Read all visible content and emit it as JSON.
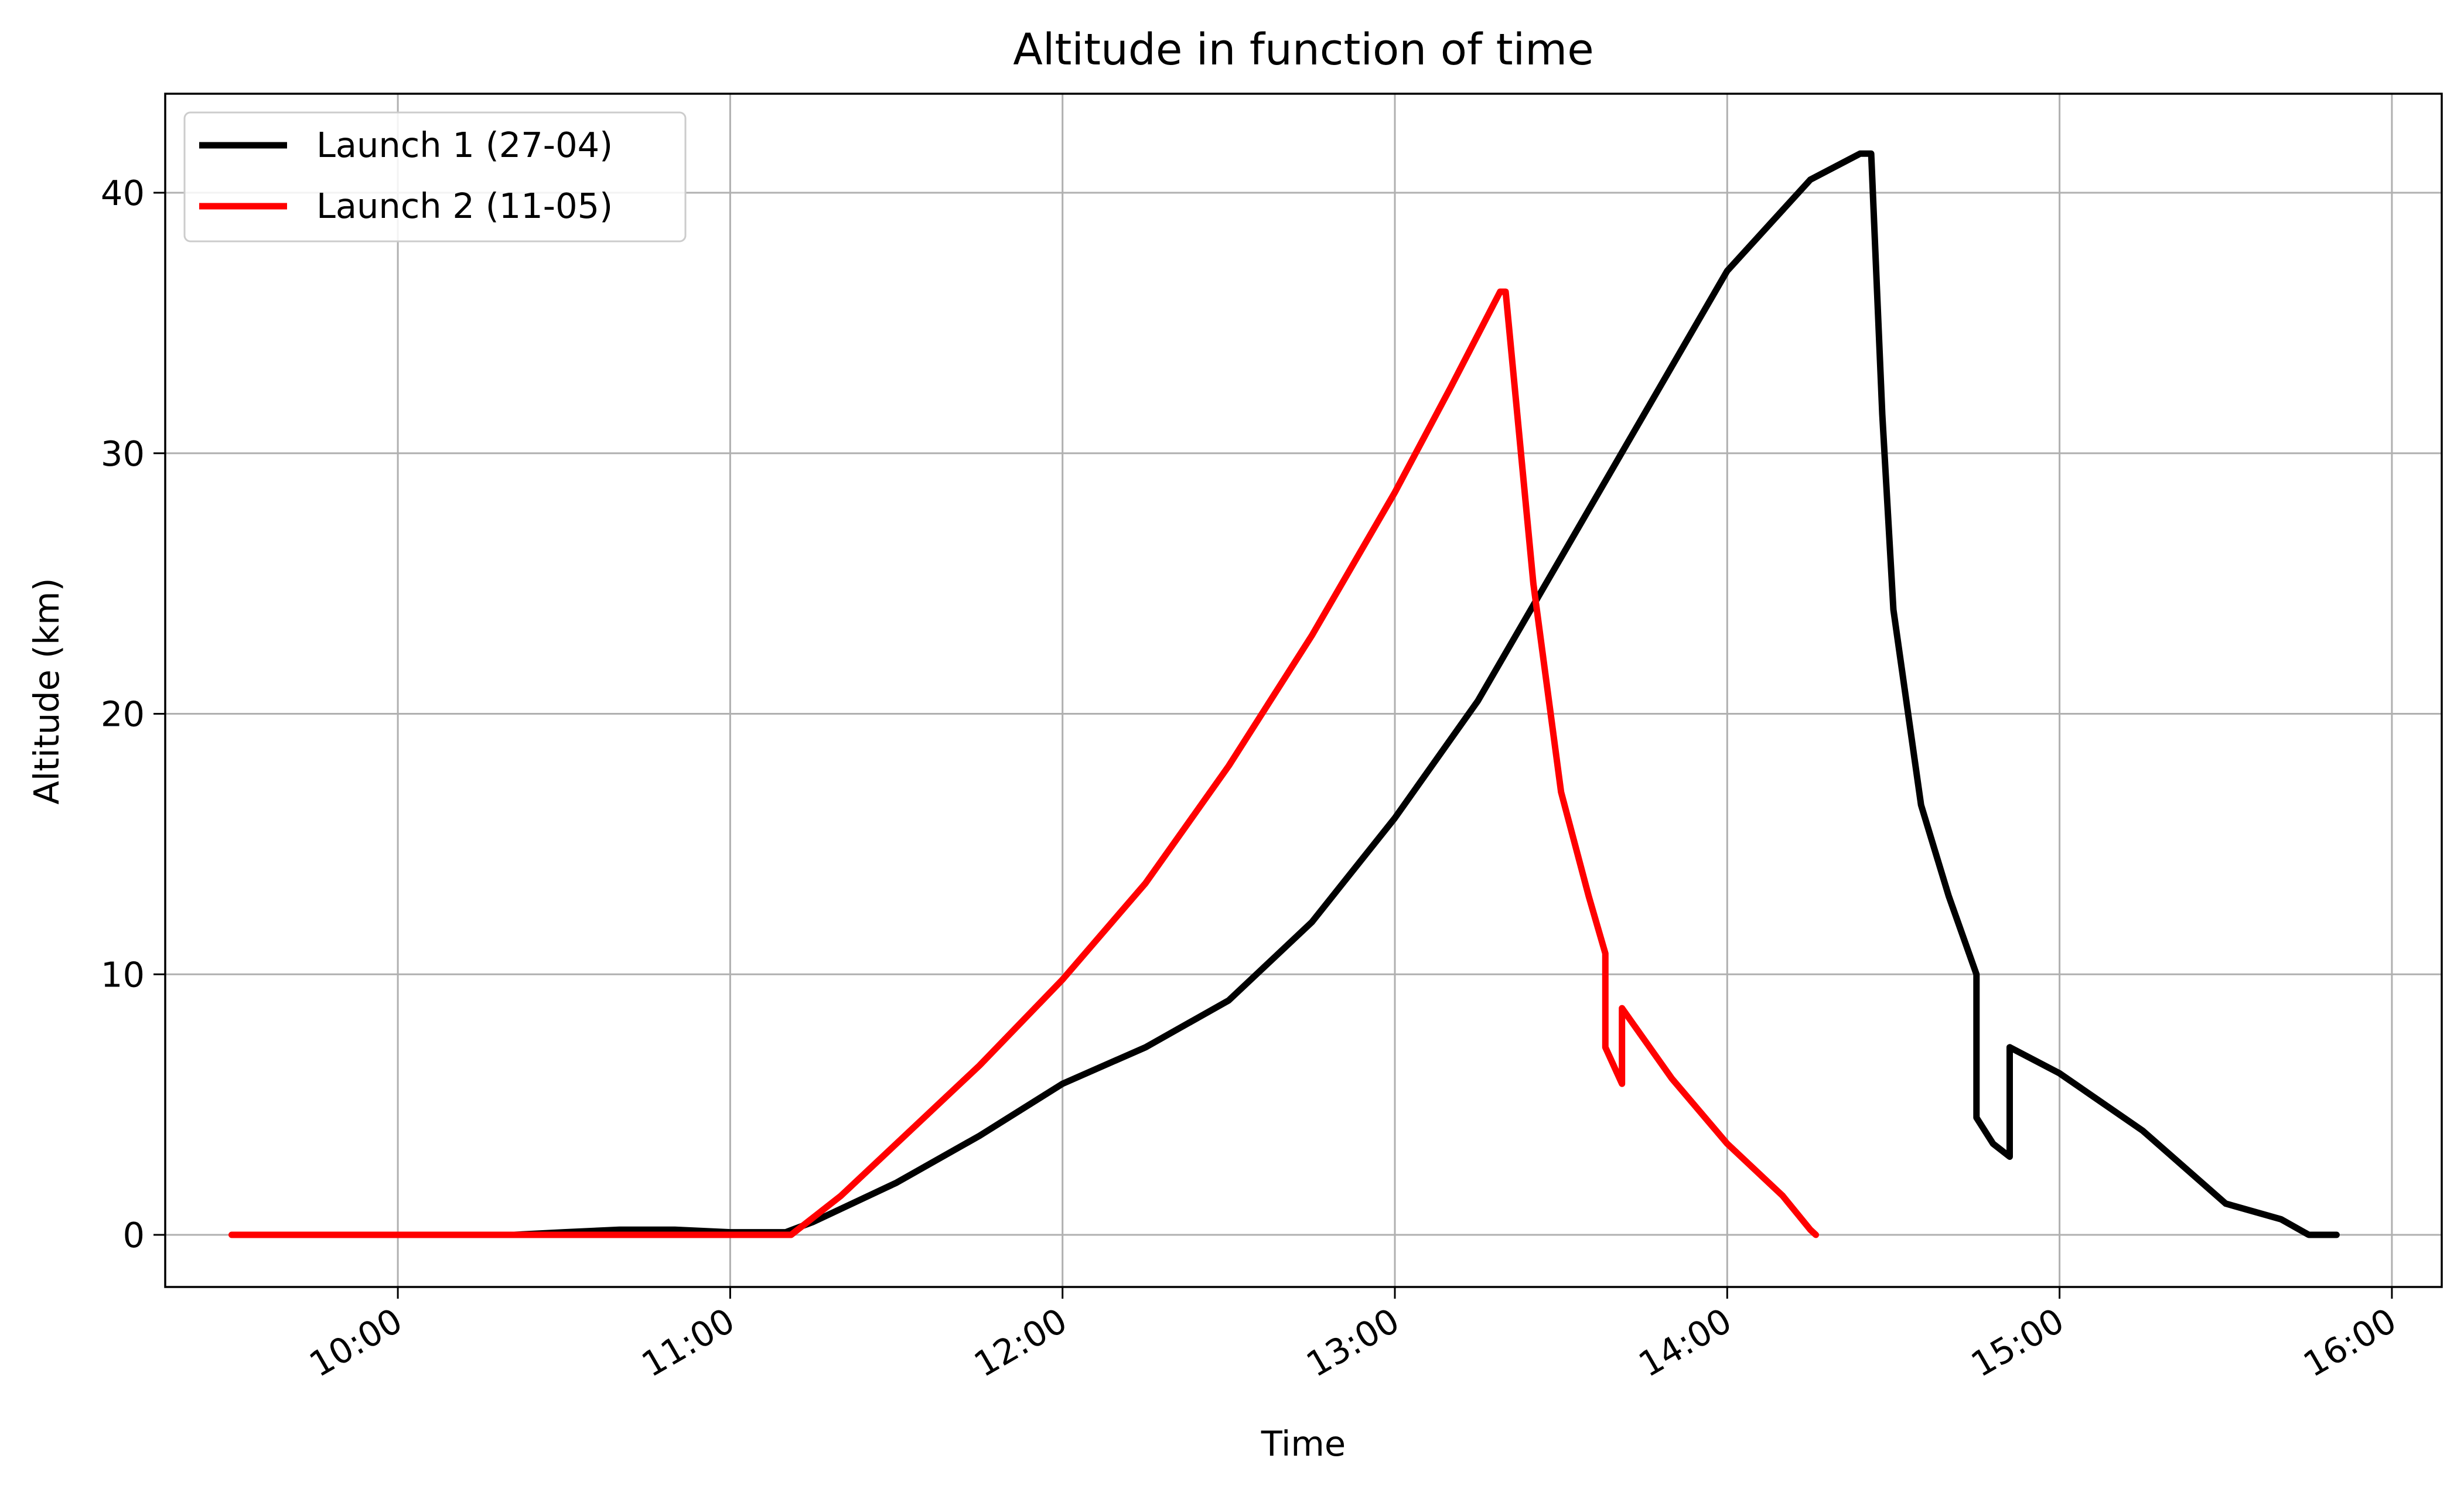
{
  "chart_data": {
    "type": "line",
    "title": "Altitude in function of time",
    "xlabel": "Time",
    "ylabel": "Altitude (km)",
    "x_unit": "time of day (HH:MM)",
    "xlim": [
      "09:18",
      "16:09"
    ],
    "ylim": [
      -2,
      43.8
    ],
    "x_ticks": [
      "10:00",
      "11:00",
      "12:00",
      "13:00",
      "14:00",
      "15:00",
      "16:00"
    ],
    "y_ticks": [
      0,
      10,
      20,
      30,
      40
    ],
    "grid": true,
    "legend_position": "top-left",
    "series": [
      {
        "name": "Launch 1 (27-04)",
        "color": "#000000",
        "points": [
          [
            "10:21",
            0
          ],
          [
            "10:30",
            0.1
          ],
          [
            "10:40",
            0.2
          ],
          [
            "10:50",
            0.2
          ],
          [
            "11:00",
            0.1
          ],
          [
            "11:10",
            0.1
          ],
          [
            "11:15",
            0.5
          ],
          [
            "11:30",
            2.0
          ],
          [
            "11:45",
            3.8
          ],
          [
            "12:00",
            5.8
          ],
          [
            "12:15",
            7.2
          ],
          [
            "12:30",
            9.0
          ],
          [
            "12:45",
            12.0
          ],
          [
            "13:00",
            16.0
          ],
          [
            "13:15",
            20.5
          ],
          [
            "13:30",
            26.0
          ],
          [
            "13:45",
            31.5
          ],
          [
            "14:00",
            37.0
          ],
          [
            "14:15",
            40.5
          ],
          [
            "14:24",
            41.5
          ],
          [
            "14:26",
            41.5
          ],
          [
            "14:28",
            31.5
          ],
          [
            "14:30",
            24.0
          ],
          [
            "14:35",
            16.5
          ],
          [
            "14:40",
            13.0
          ],
          [
            "14:45",
            10.0
          ],
          [
            "14:45",
            4.5
          ],
          [
            "14:48",
            3.5
          ],
          [
            "14:51",
            3.0
          ],
          [
            "14:51",
            7.2
          ],
          [
            "15:00",
            6.2
          ],
          [
            "15:15",
            4.0
          ],
          [
            "15:30",
            1.2
          ],
          [
            "15:40",
            0.6
          ],
          [
            "15:45",
            0.0
          ],
          [
            "15:50",
            0.0
          ]
        ]
      },
      {
        "name": "Launch 2 (11-05)",
        "color": "#ff0000",
        "points": [
          [
            "09:30",
            0
          ],
          [
            "10:00",
            0
          ],
          [
            "10:30",
            0
          ],
          [
            "11:00",
            0
          ],
          [
            "11:11",
            0
          ],
          [
            "11:20",
            1.5
          ],
          [
            "11:30",
            3.5
          ],
          [
            "11:45",
            6.5
          ],
          [
            "12:00",
            9.8
          ],
          [
            "12:15",
            13.5
          ],
          [
            "12:30",
            18.0
          ],
          [
            "12:45",
            23.0
          ],
          [
            "13:00",
            28.5
          ],
          [
            "13:10",
            32.5
          ],
          [
            "13:19",
            36.2
          ],
          [
            "13:20",
            36.2
          ],
          [
            "13:25",
            25.0
          ],
          [
            "13:30",
            17.0
          ],
          [
            "13:35",
            13.0
          ],
          [
            "13:38",
            10.8
          ],
          [
            "13:38",
            7.2
          ],
          [
            "13:41",
            5.8
          ],
          [
            "13:41",
            8.7
          ],
          [
            "13:50",
            6.0
          ],
          [
            "14:00",
            3.5
          ],
          [
            "14:10",
            1.5
          ],
          [
            "14:15",
            0.2
          ],
          [
            "14:16",
            0.0
          ]
        ]
      }
    ]
  }
}
